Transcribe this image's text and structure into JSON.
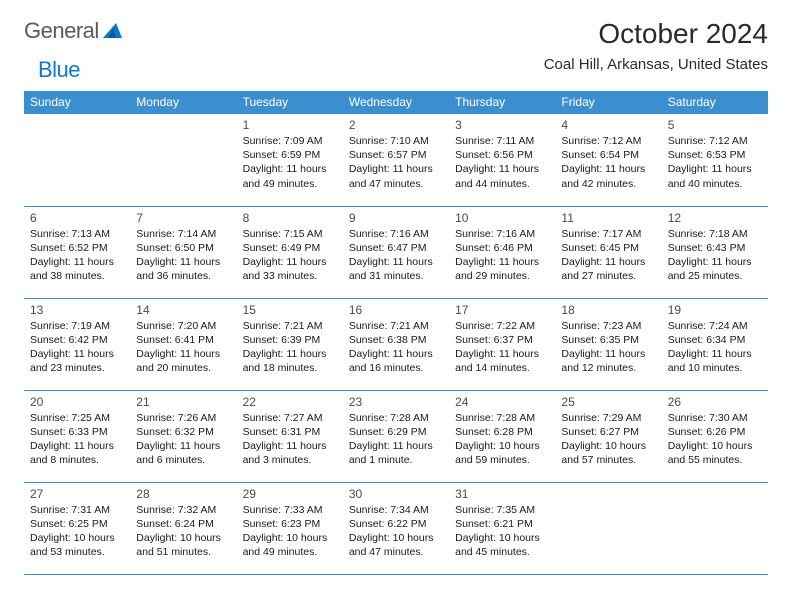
{
  "logo": {
    "part1": "General",
    "part2": "Blue"
  },
  "title": "October 2024",
  "location": "Coal Hill, Arkansas, United States",
  "colors": {
    "header_bg": "#3c8fcf",
    "header_text": "#ffffff",
    "border": "#3c8fcf",
    "logo_gray": "#5a5a5a",
    "logo_blue": "#1178c8",
    "text": "#1a1a1a",
    "daynum": "#4a4a4a",
    "background": "#ffffff"
  },
  "weekdays": [
    "Sunday",
    "Monday",
    "Tuesday",
    "Wednesday",
    "Thursday",
    "Friday",
    "Saturday"
  ],
  "weeks": [
    [
      null,
      null,
      {
        "n": "1",
        "sunrise": "Sunrise: 7:09 AM",
        "sunset": "Sunset: 6:59 PM",
        "daylight": "Daylight: 11 hours and 49 minutes."
      },
      {
        "n": "2",
        "sunrise": "Sunrise: 7:10 AM",
        "sunset": "Sunset: 6:57 PM",
        "daylight": "Daylight: 11 hours and 47 minutes."
      },
      {
        "n": "3",
        "sunrise": "Sunrise: 7:11 AM",
        "sunset": "Sunset: 6:56 PM",
        "daylight": "Daylight: 11 hours and 44 minutes."
      },
      {
        "n": "4",
        "sunrise": "Sunrise: 7:12 AM",
        "sunset": "Sunset: 6:54 PM",
        "daylight": "Daylight: 11 hours and 42 minutes."
      },
      {
        "n": "5",
        "sunrise": "Sunrise: 7:12 AM",
        "sunset": "Sunset: 6:53 PM",
        "daylight": "Daylight: 11 hours and 40 minutes."
      }
    ],
    [
      {
        "n": "6",
        "sunrise": "Sunrise: 7:13 AM",
        "sunset": "Sunset: 6:52 PM",
        "daylight": "Daylight: 11 hours and 38 minutes."
      },
      {
        "n": "7",
        "sunrise": "Sunrise: 7:14 AM",
        "sunset": "Sunset: 6:50 PM",
        "daylight": "Daylight: 11 hours and 36 minutes."
      },
      {
        "n": "8",
        "sunrise": "Sunrise: 7:15 AM",
        "sunset": "Sunset: 6:49 PM",
        "daylight": "Daylight: 11 hours and 33 minutes."
      },
      {
        "n": "9",
        "sunrise": "Sunrise: 7:16 AM",
        "sunset": "Sunset: 6:47 PM",
        "daylight": "Daylight: 11 hours and 31 minutes."
      },
      {
        "n": "10",
        "sunrise": "Sunrise: 7:16 AM",
        "sunset": "Sunset: 6:46 PM",
        "daylight": "Daylight: 11 hours and 29 minutes."
      },
      {
        "n": "11",
        "sunrise": "Sunrise: 7:17 AM",
        "sunset": "Sunset: 6:45 PM",
        "daylight": "Daylight: 11 hours and 27 minutes."
      },
      {
        "n": "12",
        "sunrise": "Sunrise: 7:18 AM",
        "sunset": "Sunset: 6:43 PM",
        "daylight": "Daylight: 11 hours and 25 minutes."
      }
    ],
    [
      {
        "n": "13",
        "sunrise": "Sunrise: 7:19 AM",
        "sunset": "Sunset: 6:42 PM",
        "daylight": "Daylight: 11 hours and 23 minutes."
      },
      {
        "n": "14",
        "sunrise": "Sunrise: 7:20 AM",
        "sunset": "Sunset: 6:41 PM",
        "daylight": "Daylight: 11 hours and 20 minutes."
      },
      {
        "n": "15",
        "sunrise": "Sunrise: 7:21 AM",
        "sunset": "Sunset: 6:39 PM",
        "daylight": "Daylight: 11 hours and 18 minutes."
      },
      {
        "n": "16",
        "sunrise": "Sunrise: 7:21 AM",
        "sunset": "Sunset: 6:38 PM",
        "daylight": "Daylight: 11 hours and 16 minutes."
      },
      {
        "n": "17",
        "sunrise": "Sunrise: 7:22 AM",
        "sunset": "Sunset: 6:37 PM",
        "daylight": "Daylight: 11 hours and 14 minutes."
      },
      {
        "n": "18",
        "sunrise": "Sunrise: 7:23 AM",
        "sunset": "Sunset: 6:35 PM",
        "daylight": "Daylight: 11 hours and 12 minutes."
      },
      {
        "n": "19",
        "sunrise": "Sunrise: 7:24 AM",
        "sunset": "Sunset: 6:34 PM",
        "daylight": "Daylight: 11 hours and 10 minutes."
      }
    ],
    [
      {
        "n": "20",
        "sunrise": "Sunrise: 7:25 AM",
        "sunset": "Sunset: 6:33 PM",
        "daylight": "Daylight: 11 hours and 8 minutes."
      },
      {
        "n": "21",
        "sunrise": "Sunrise: 7:26 AM",
        "sunset": "Sunset: 6:32 PM",
        "daylight": "Daylight: 11 hours and 6 minutes."
      },
      {
        "n": "22",
        "sunrise": "Sunrise: 7:27 AM",
        "sunset": "Sunset: 6:31 PM",
        "daylight": "Daylight: 11 hours and 3 minutes."
      },
      {
        "n": "23",
        "sunrise": "Sunrise: 7:28 AM",
        "sunset": "Sunset: 6:29 PM",
        "daylight": "Daylight: 11 hours and 1 minute."
      },
      {
        "n": "24",
        "sunrise": "Sunrise: 7:28 AM",
        "sunset": "Sunset: 6:28 PM",
        "daylight": "Daylight: 10 hours and 59 minutes."
      },
      {
        "n": "25",
        "sunrise": "Sunrise: 7:29 AM",
        "sunset": "Sunset: 6:27 PM",
        "daylight": "Daylight: 10 hours and 57 minutes."
      },
      {
        "n": "26",
        "sunrise": "Sunrise: 7:30 AM",
        "sunset": "Sunset: 6:26 PM",
        "daylight": "Daylight: 10 hours and 55 minutes."
      }
    ],
    [
      {
        "n": "27",
        "sunrise": "Sunrise: 7:31 AM",
        "sunset": "Sunset: 6:25 PM",
        "daylight": "Daylight: 10 hours and 53 minutes."
      },
      {
        "n": "28",
        "sunrise": "Sunrise: 7:32 AM",
        "sunset": "Sunset: 6:24 PM",
        "daylight": "Daylight: 10 hours and 51 minutes."
      },
      {
        "n": "29",
        "sunrise": "Sunrise: 7:33 AM",
        "sunset": "Sunset: 6:23 PM",
        "daylight": "Daylight: 10 hours and 49 minutes."
      },
      {
        "n": "30",
        "sunrise": "Sunrise: 7:34 AM",
        "sunset": "Sunset: 6:22 PM",
        "daylight": "Daylight: 10 hours and 47 minutes."
      },
      {
        "n": "31",
        "sunrise": "Sunrise: 7:35 AM",
        "sunset": "Sunset: 6:21 PM",
        "daylight": "Daylight: 10 hours and 45 minutes."
      },
      null,
      null
    ]
  ]
}
